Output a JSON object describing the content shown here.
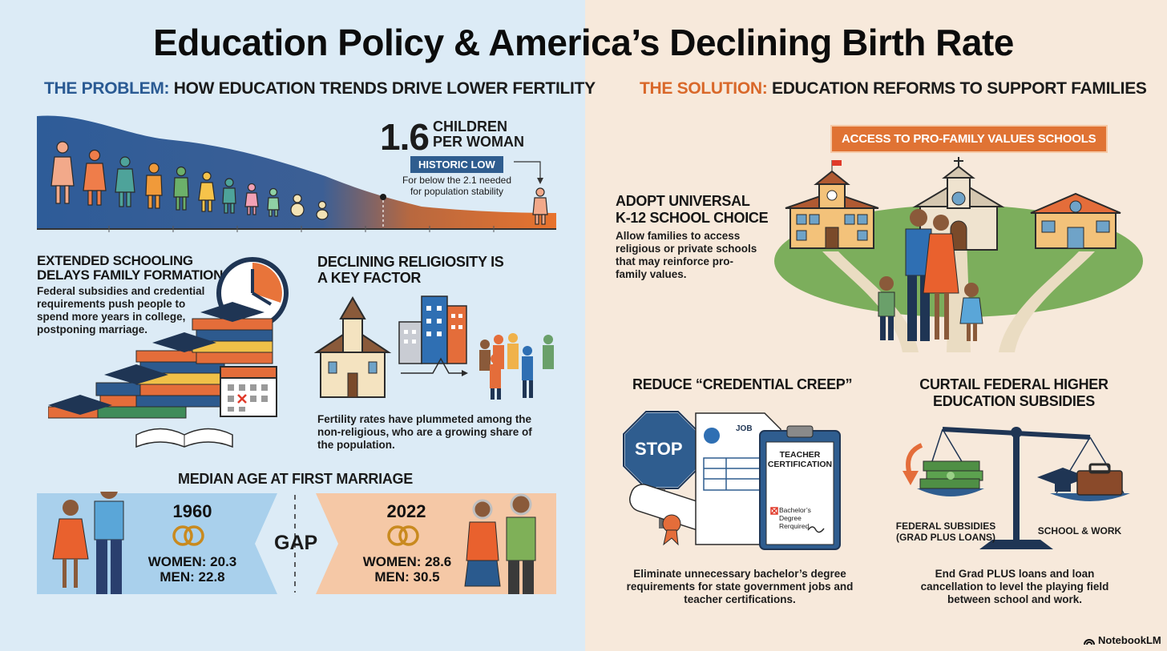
{
  "title": "Education Policy & America’s Declining Birth Rate",
  "problem": {
    "keyword": "THE PROBLEM:",
    "heading": "HOW EDUCATION TRENDS DRIVE LOWER FERTILITY",
    "fertility_number": "1.6",
    "fertility_unit_line1": "CHILDREN",
    "fertility_unit_line2": "PER WOMAN",
    "badge": "HISTORIC LOW",
    "note_line1": "For below the 2.1 needed",
    "note_line2": "for population stability",
    "schooling_title_line1": "EXTENDED SCHOOLING",
    "schooling_title_line2": "DELAYS FAMILY FORMATION",
    "schooling_body": "Federal subsidies and credential requirements push people to spend more years in college, postponing marriage.",
    "religion_title_line1": "DECLINING RELIGIOSITY IS",
    "religion_title_line2": "A KEY FACTOR",
    "religion_body": "Fertility rates have plummeted among the non-religious, who are a growing share of the population.",
    "marriage_title": "MEDIAN AGE AT FIRST MARRIAGE",
    "gap_label": "GAP",
    "marriage": [
      {
        "year": "1960",
        "women": "WOMEN: 20.3",
        "men": "MEN: 22.8"
      },
      {
        "year": "2022",
        "women": "WOMEN: 28.6",
        "men": "MEN: 30.5"
      }
    ]
  },
  "solution": {
    "keyword": "THE SOLUTION:",
    "heading": "EDUCATION REFORMS TO SUPPORT FAMILIES",
    "banner": "ACCESS TO PRO-FAMILY VALUES SCHOOLS",
    "choice_title_line1": "ADOPT UNIVERSAL",
    "choice_title_line2": "K-12 SCHOOL CHOICE",
    "choice_body": "Allow families to access religious or private schools that may reinforce pro-family values.",
    "credential_title": "REDUCE “CREDENTIAL CREEP”",
    "stop_sign": "STOP",
    "job_label": "JOB",
    "cert_line1": "TEACHER",
    "cert_line2": "CERTIFICATION",
    "cert_item": "Bachelor’s Degree Rerquired",
    "credential_body": "Eliminate unnecessary bachelor’s degree requirements for state government jobs and teacher certifications.",
    "subsidy_title_line1": "CURTAIL FEDERAL HIGHER",
    "subsidy_title_line2": "EDUCATION SUBSIDIES",
    "scale_left_line1": "FEDERAL SUBSIDIES",
    "scale_left_line2": "(GRAD PLUS LOANS)",
    "scale_right": "SCHOOL & WORK",
    "subsidy_body": "End Grad PLUS loans and loan cancellation to level the playing field between school and work."
  },
  "footer": {
    "brand": "NotebookLM"
  },
  "colors": {
    "blue": "#2f5d8f",
    "orange": "#e07334",
    "left_bg": "#dcebf6",
    "right_bg": "#f7e9db"
  }
}
